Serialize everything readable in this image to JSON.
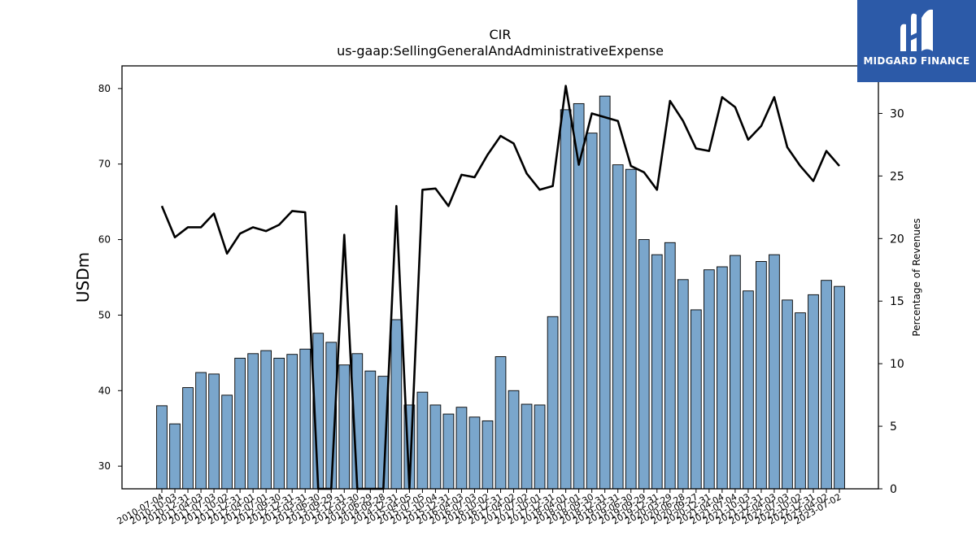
{
  "chart_data": {
    "type": "bar",
    "title": "CIR",
    "subtitle": "us-gaap:SellingGeneralAndAdministrativeExpense",
    "ylabel": "USDm",
    "y2label": "Percentage of Revenues",
    "ylim": [
      27,
      83
    ],
    "y2lim": [
      0,
      33.8
    ],
    "yticks": [
      30,
      40,
      50,
      60,
      70,
      80
    ],
    "y2ticks": [
      0,
      5,
      10,
      15,
      20,
      25,
      30
    ],
    "bar_color": "#7aa6cc",
    "line_color": "#000000",
    "categories": [
      "2010-07-04",
      "2010-10-03",
      "2010-12-31",
      "2011-04-03",
      "2011-07-03",
      "2011-10-02",
      "2011-12-31",
      "2012-04-01",
      "2012-07-01",
      "2012-09-30",
      "2012-12-31",
      "2013-03-31",
      "2013-06-30",
      "2013-09-29",
      "2013-12-31",
      "2014-03-30",
      "2014-06-29",
      "2014-09-28",
      "2014-12-31",
      "2015-04-05",
      "2015-07-05",
      "2015-10-04",
      "2015-12-31",
      "2016-04-03",
      "2016-07-03",
      "2016-10-02",
      "2016-12-31",
      "2017-04-02",
      "2017-07-02",
      "2017-10-01",
      "2017-12-31",
      "2018-04-01",
      "2018-07-01",
      "2018-09-30",
      "2018-12-31",
      "2019-03-31",
      "2019-06-30",
      "2019-09-29",
      "2019-12-31",
      "2020-03-29",
      "2020-06-28",
      "2020-09-27",
      "2020-12-31",
      "2021-04-04",
      "2021-07-04",
      "2021-10-03",
      "2021-12-31",
      "2022-04-03",
      "2022-07-03",
      "2022-10-02",
      "2022-12-31",
      "2023-04-02",
      "2023-07-02"
    ],
    "series": [
      {
        "values": [
          38.0,
          35.6,
          40.4,
          42.4,
          42.2,
          39.4,
          44.3,
          44.9,
          45.3,
          44.3,
          44.8,
          45.5,
          47.6,
          46.4,
          43.4,
          44.9,
          42.6,
          41.9,
          49.4,
          38.1,
          39.8,
          38.1,
          36.9,
          37.8,
          36.5,
          36.0,
          44.5,
          40.0,
          38.2,
          38.1,
          49.8,
          77.2,
          78.0,
          74.1,
          79.0,
          69.9,
          69.3,
          60.0,
          58.0,
          59.6,
          54.7,
          50.7,
          56.0,
          56.4,
          57.9,
          53.2,
          57.1,
          58.0,
          52.0,
          50.3,
          52.7,
          54.6,
          53.8
        ]
      },
      {
        "axis": "right",
        "values": [
          22.6,
          20.1,
          20.9,
          20.9,
          22.0,
          18.8,
          20.4,
          20.9,
          20.6,
          21.1,
          22.2,
          22.1,
          0,
          0,
          20.3,
          0,
          0,
          0,
          22.6,
          0,
          23.9,
          24.0,
          22.6,
          25.1,
          24.9,
          26.7,
          28.2,
          27.6,
          25.2,
          23.9,
          24.2,
          32.2,
          25.9,
          30.0,
          29.7,
          29.4,
          25.8,
          25.3,
          23.9,
          31.0,
          29.4,
          27.2,
          27.0,
          31.3,
          30.5,
          27.9,
          29.0,
          31.3,
          27.3,
          25.8,
          24.6,
          27.0,
          25.8
        ]
      }
    ]
  },
  "logo": {
    "text": "MIDGARD FINANCE"
  }
}
